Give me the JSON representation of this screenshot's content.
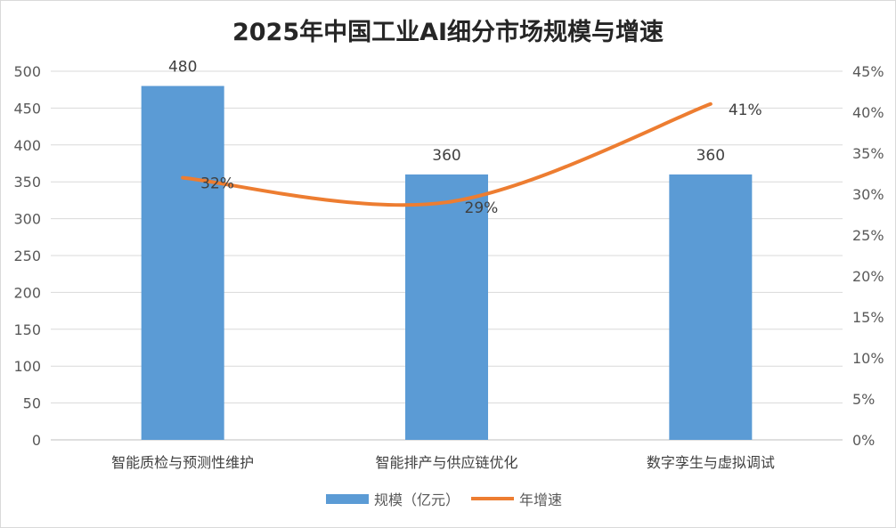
{
  "chart_data": {
    "type": "bar",
    "title": "2025年中国工业AI细分市场规模与增速",
    "categories": [
      "智能质检与预测性维护",
      "智能排产与供应链优化",
      "数字孪生与虚拟调试"
    ],
    "series": [
      {
        "name": "规模（亿元）",
        "type": "bar",
        "axis": "left",
        "values": [
          480,
          360,
          360
        ],
        "labels": [
          "480",
          "360",
          "360"
        ],
        "color": "#5b9bd5"
      },
      {
        "name": "年增速",
        "type": "line",
        "axis": "right",
        "values": [
          32,
          29,
          41
        ],
        "labels": [
          "32%",
          "29%",
          "41%"
        ],
        "color": "#ed7d31"
      }
    ],
    "y_left": {
      "ylim": [
        0,
        500
      ],
      "ticks": [
        "0",
        "50",
        "100",
        "150",
        "200",
        "250",
        "300",
        "350",
        "400",
        "450",
        "500"
      ]
    },
    "y_right": {
      "ylim": [
        0,
        45
      ],
      "ticks": [
        "0%",
        "5%",
        "10%",
        "15%",
        "20%",
        "25%",
        "30%",
        "35%",
        "40%",
        "45%"
      ]
    },
    "grid": true,
    "legend_position": "bottom"
  }
}
